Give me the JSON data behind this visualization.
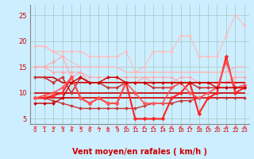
{
  "bg_color": "#cceeff",
  "grid_color": "#aacccc",
  "xlabel": "Vent moyen/en rafales ( km/h )",
  "ylim": [
    4,
    27
  ],
  "yticks": [
    5,
    10,
    15,
    20,
    25
  ],
  "xlim": [
    -0.5,
    23.5
  ],
  "xticks": [
    0,
    1,
    2,
    3,
    4,
    5,
    6,
    7,
    8,
    9,
    10,
    11,
    12,
    13,
    14,
    15,
    16,
    17,
    18,
    19,
    20,
    21,
    22,
    23
  ],
  "x": [
    0,
    1,
    2,
    3,
    4,
    5,
    6,
    7,
    8,
    9,
    10,
    11,
    12,
    13,
    14,
    15,
    16,
    17,
    18,
    19,
    20,
    21,
    22,
    23
  ],
  "series": [
    {
      "y": [
        15,
        15,
        15,
        15,
        15,
        15,
        15,
        15,
        15,
        15,
        14,
        14,
        14,
        14,
        14,
        14,
        14,
        14,
        14,
        14,
        14,
        14,
        15,
        15
      ],
      "color": "#ffaaaa",
      "lw": 0.8,
      "marker": null
    },
    {
      "y": [
        19,
        19,
        18,
        17,
        16,
        15,
        15,
        15,
        15,
        15,
        14,
        14,
        14,
        14,
        14,
        14,
        14,
        14,
        14,
        14,
        14,
        14,
        14,
        14
      ],
      "color": "#ffbbbb",
      "lw": 0.8,
      "marker": null
    },
    {
      "y": [
        15,
        15,
        14,
        14,
        14,
        14,
        13,
        13,
        13,
        13,
        13,
        13,
        13,
        13,
        13,
        13,
        12,
        12,
        12,
        12,
        12,
        12,
        13,
        13
      ],
      "color": "#ffaaaa",
      "lw": 0.8,
      "marker": "D",
      "ms": 2
    },
    {
      "y": [
        19,
        19,
        18,
        18,
        18,
        18,
        17,
        17,
        17,
        17,
        18,
        14,
        15,
        18,
        18,
        18,
        21,
        21,
        17,
        17,
        17,
        21,
        25,
        23
      ],
      "color": "#ffbbbb",
      "lw": 0.8,
      "marker": "D",
      "ms": 2
    },
    {
      "y": [
        15,
        15,
        16,
        17,
        13,
        14,
        12,
        12,
        13,
        13,
        12,
        12,
        13,
        12,
        12,
        12,
        13,
        13,
        12,
        12,
        12,
        12,
        12,
        12
      ],
      "color": "#ffaaaa",
      "lw": 0.8,
      "marker": "D",
      "ms": 2
    },
    {
      "y": [
        13,
        13,
        13,
        12,
        12,
        12,
        12,
        12,
        12,
        12,
        12,
        12,
        12,
        12,
        12,
        12,
        12,
        12,
        12,
        12,
        12,
        12,
        12,
        12
      ],
      "color": "#cc0000",
      "lw": 1.2,
      "marker": null
    },
    {
      "y": [
        10,
        10,
        10,
        10,
        10,
        10,
        10,
        10,
        10,
        10,
        10,
        10,
        10,
        10,
        10,
        10,
        10,
        10,
        10,
        10,
        10,
        10,
        10,
        10
      ],
      "color": "#cc0000",
      "lw": 1.2,
      "marker": null
    },
    {
      "y": [
        9,
        9,
        9,
        9,
        9,
        9,
        9,
        9,
        9,
        9,
        9,
        9,
        9,
        9,
        9,
        9,
        9,
        9,
        9,
        9,
        9,
        9,
        9,
        9
      ],
      "color": "#cc0000",
      "lw": 1.2,
      "marker": null
    },
    {
      "y": [
        13,
        13,
        12,
        13,
        10,
        13,
        12,
        12,
        11,
        11,
        12,
        12,
        12,
        11,
        11,
        11,
        12,
        12,
        11,
        11,
        11,
        11,
        11,
        11
      ],
      "color": "#cc3333",
      "lw": 1.2,
      "marker": "D",
      "ms": 2
    },
    {
      "y": [
        9,
        9,
        8.5,
        8,
        7.5,
        7,
        7,
        7,
        7,
        7,
        7,
        7,
        7.5,
        8,
        8,
        8,
        8.5,
        8.5,
        9,
        9,
        9,
        9,
        9,
        9
      ],
      "color": "#cc3333",
      "lw": 1.0,
      "marker": "D",
      "ms": 2
    },
    {
      "y": [
        9,
        9,
        9.5,
        10,
        13,
        9,
        8,
        9,
        8,
        8,
        12,
        5,
        5,
        5,
        5,
        9,
        10,
        12,
        6,
        9,
        10,
        17,
        10,
        11
      ],
      "color": "#ff2222",
      "lw": 1.5,
      "marker": "D",
      "ms": 2.5
    },
    {
      "y": [
        9,
        9.5,
        10,
        11,
        13,
        9,
        8,
        9,
        8,
        8,
        12,
        10,
        8,
        8,
        8,
        11,
        12,
        10,
        9,
        10,
        11,
        16,
        11,
        11.5
      ],
      "color": "#ff5555",
      "lw": 1.2,
      "marker": "D",
      "ms": 2.5
    },
    {
      "y": [
        8,
        8,
        8,
        9,
        12,
        13,
        12,
        12,
        13,
        13,
        12,
        12,
        12,
        12,
        12,
        12,
        12,
        12,
        12,
        12,
        11,
        11,
        11,
        11
      ],
      "color": "#cc0000",
      "lw": 1.0,
      "marker": "D",
      "ms": 2
    }
  ],
  "arrow_color": "#ff3333",
  "arrow_angles": [
    225,
    225,
    210,
    210,
    210,
    210,
    210,
    180,
    180,
    270,
    270,
    270,
    270,
    270,
    270,
    270,
    270,
    270,
    270,
    270,
    315,
    315,
    315,
    315
  ],
  "tick_color": "#cc0000",
  "xlabel_color": "#cc0000",
  "axis_color": "#888888"
}
